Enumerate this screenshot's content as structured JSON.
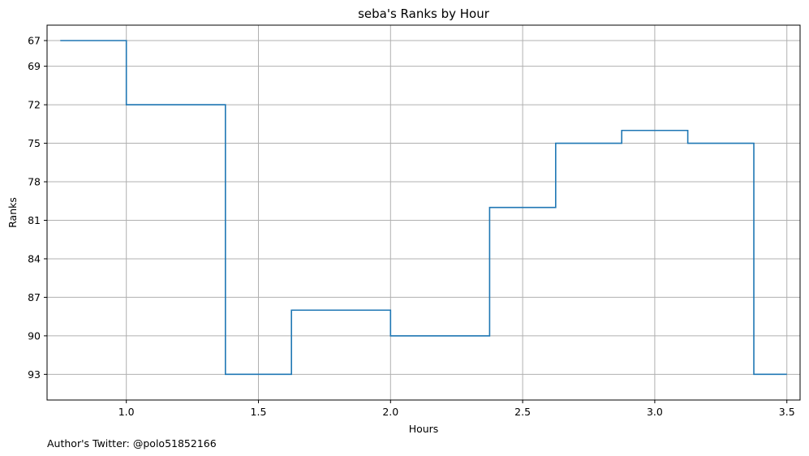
{
  "chart_data": {
    "type": "line",
    "style": "step",
    "title": "seba's Ranks by Hour",
    "xlabel": "Hours",
    "ylabel": "Ranks",
    "xlim": [
      0.7,
      3.55
    ],
    "ylim": [
      95,
      65.8
    ],
    "y_inverted": true,
    "grid": true,
    "xticks": [
      1.0,
      1.5,
      2.0,
      2.5,
      3.0,
      3.5
    ],
    "xtick_labels": [
      "1.0",
      "1.5",
      "2.0",
      "2.5",
      "3.0",
      "3.5"
    ],
    "yticks": [
      67,
      69,
      72,
      75,
      78,
      81,
      84,
      87,
      90,
      93
    ],
    "ytick_labels": [
      "67",
      "69",
      "72",
      "75",
      "78",
      "81",
      "84",
      "87",
      "90",
      "93"
    ],
    "series": [
      {
        "color": "#1f77b4",
        "points": [
          [
            0.75,
            67
          ],
          [
            1.0,
            67
          ],
          [
            1.0,
            72
          ],
          [
            1.375,
            72
          ],
          [
            1.375,
            93
          ],
          [
            1.625,
            93
          ],
          [
            1.625,
            88
          ],
          [
            2.0,
            88
          ],
          [
            2.0,
            90
          ],
          [
            2.375,
            90
          ],
          [
            2.375,
            80
          ],
          [
            2.625,
            80
          ],
          [
            2.625,
            75
          ],
          [
            2.875,
            75
          ],
          [
            2.875,
            74
          ],
          [
            3.125,
            74
          ],
          [
            3.125,
            75
          ],
          [
            3.375,
            75
          ],
          [
            3.375,
            93
          ],
          [
            3.5,
            93
          ]
        ]
      }
    ]
  },
  "footer": {
    "text": "Author's Twitter: @polo51852166"
  },
  "colors": {
    "grid": "#b0b0b0",
    "axes": "#000000",
    "line": "#1f77b4"
  }
}
